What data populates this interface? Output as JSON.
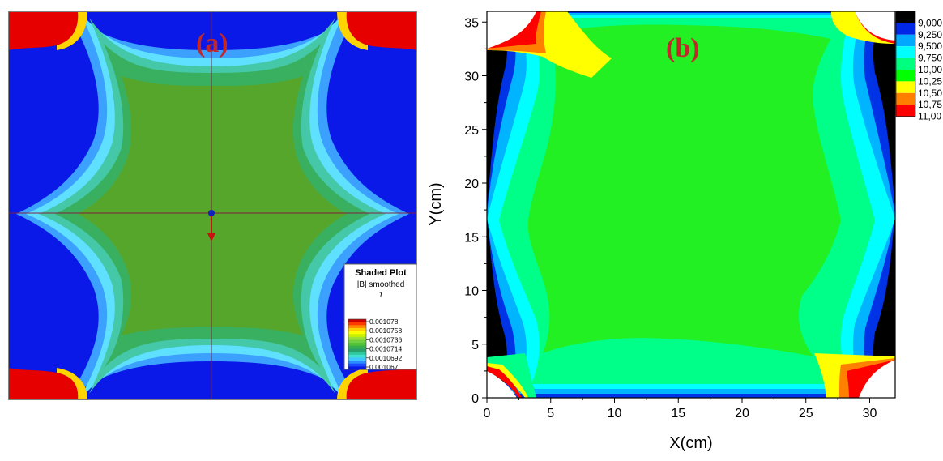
{
  "chart_data": [
    {
      "type": "heatmap",
      "panel_label": "(a)",
      "title": "Shaded Plot",
      "subtitle": "|B| smoothed",
      "index_label": "1",
      "colorbar": {
        "ticks": [
          "0.001078",
          "0.0010758",
          "0.0010736",
          "0.0010714",
          "0.0010692",
          "0.001067"
        ],
        "values": [
          0.001078,
          0.0010758,
          0.0010736,
          0.0010714,
          0.0010692,
          0.001067
        ],
        "colors": [
          "#cc0000",
          "#ff3a00",
          "#ff8a00",
          "#ffcf00",
          "#f8ff00",
          "#c8f000",
          "#9ee03a",
          "#72d040",
          "#4fbf3a",
          "#36b04e",
          "#2aa06a",
          "#30c89a",
          "#40e0d0",
          "#40c8ff",
          "#2a8cff",
          "#1c4cff",
          "#0a18e8"
        ]
      },
      "region_colors": {
        "min": "#0a18e8",
        "band1": "#3ca0ff",
        "band2": "#5fe0ff",
        "band3": "#44c8a8",
        "band4": "#38b060",
        "center": "#56a62c",
        "max": "#e60000"
      }
    },
    {
      "type": "contour",
      "panel_label": "(b)",
      "xlabel": "X(cm)",
      "ylabel": "Y(cm)",
      "xlim": [
        0,
        32
      ],
      "ylim": [
        0,
        36
      ],
      "x_ticks": [
        0,
        5,
        10,
        15,
        20,
        25,
        30
      ],
      "y_ticks": [
        0,
        5,
        10,
        15,
        20,
        25,
        30,
        35
      ],
      "legend": {
        "labels": [
          "9,000",
          "9,250",
          "9,500",
          "9,750",
          "10,00",
          "10,25",
          "10,50",
          "10,75",
          "11,00"
        ],
        "colors": [
          "#000000",
          "#0026e6",
          "#00a8ff",
          "#00ffff",
          "#00ff7f",
          "#00ff00",
          "#ffff00",
          "#ff8000",
          "#ff0000"
        ]
      },
      "fill_colors": {
        "core": "#22f022",
        "light_green": "#00ff88",
        "cyan": "#00ffff",
        "sky": "#00b4ff",
        "blue": "#0032e6",
        "black": "#000000",
        "yellow": "#ffff00",
        "orange": "#ff8000",
        "red": "#ff0000"
      }
    }
  ]
}
